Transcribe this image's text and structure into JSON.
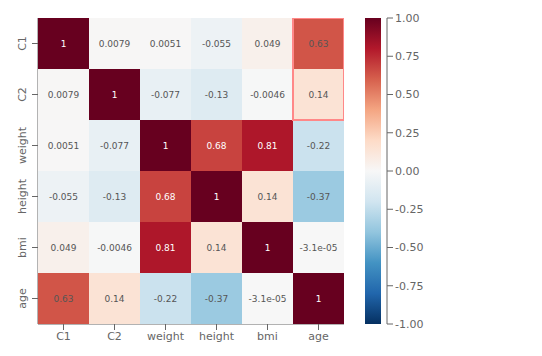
{
  "chart_data": {
    "type": "heatmap",
    "categories": [
      "C1",
      "C2",
      "weight",
      "height",
      "bmi",
      "age"
    ],
    "values": [
      [
        1,
        0.0079,
        0.0051,
        -0.055,
        0.049,
        0.63
      ],
      [
        0.0079,
        1,
        -0.077,
        -0.13,
        -0.0046,
        0.14
      ],
      [
        0.0051,
        -0.077,
        1,
        0.68,
        0.81,
        -0.22
      ],
      [
        -0.055,
        -0.13,
        0.68,
        1,
        0.14,
        -0.37
      ],
      [
        0.049,
        -0.0046,
        0.81,
        0.14,
        1,
        -3.1e-05
      ],
      [
        0.63,
        0.14,
        -0.22,
        -0.37,
        -3.1e-05,
        1
      ]
    ],
    "value_labels": [
      [
        "1",
        "0.0079",
        "0.0051",
        "-0.055",
        "0.049",
        "0.63"
      ],
      [
        "0.0079",
        "1",
        "-0.077",
        "-0.13",
        "-0.0046",
        "0.14"
      ],
      [
        "0.0051",
        "-0.077",
        "1",
        "0.68",
        "0.81",
        "-0.22"
      ],
      [
        "-0.055",
        "-0.13",
        "0.68",
        "1",
        "0.14",
        "-0.37"
      ],
      [
        "0.049",
        "-0.0046",
        "0.81",
        "0.14",
        "1",
        "-3.1e-05"
      ],
      [
        "0.63",
        "0.14",
        "-0.22",
        "-0.37",
        "-3.1e-05",
        "1"
      ]
    ],
    "data_labels": true,
    "grid": false,
    "colorbar": {
      "range": [
        -1.0,
        1.0
      ],
      "ticks": [
        {
          "value": -1.0,
          "label": "-1.00"
        },
        {
          "value": -0.75,
          "label": "-0.75"
        },
        {
          "value": -0.5,
          "label": "-0.50"
        },
        {
          "value": -0.25,
          "label": "-0.25"
        },
        {
          "value": 0,
          "label": "0.00"
        },
        {
          "value": 0.25,
          "label": "0.25"
        },
        {
          "value": 0.5,
          "label": "0.50"
        },
        {
          "value": 0.75,
          "label": "0.75"
        },
        {
          "value": 1.0,
          "label": "1.00"
        }
      ]
    },
    "highlight": {
      "col": 5,
      "row_start": 0,
      "row_end": 1,
      "color": "#ff8888"
    }
  }
}
